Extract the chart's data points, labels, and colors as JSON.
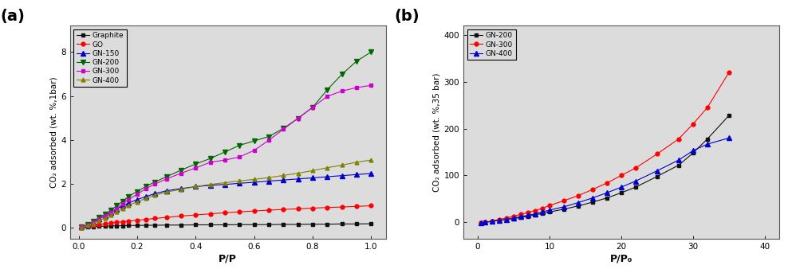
{
  "panel_a": {
    "title": "(a)",
    "xlabel": "P/P",
    "ylabel": "CO₂ adsorbed (wt. %,1bar)",
    "xlim": [
      -0.03,
      1.05
    ],
    "ylim": [
      -0.5,
      9.2
    ],
    "yticks": [
      0,
      2,
      4,
      6,
      8
    ],
    "xticks": [
      0.0,
      0.2,
      0.4,
      0.6,
      0.8,
      1.0
    ],
    "series": {
      "Graphite": {
        "color": "#111111",
        "marker": "s",
        "markersize": 3.5,
        "linewidth": 0.8,
        "x": [
          0.01,
          0.03,
          0.05,
          0.07,
          0.09,
          0.11,
          0.13,
          0.15,
          0.17,
          0.2,
          0.23,
          0.26,
          0.3,
          0.35,
          0.4,
          0.45,
          0.5,
          0.55,
          0.6,
          0.65,
          0.7,
          0.75,
          0.8,
          0.85,
          0.9,
          0.95,
          1.0
        ],
        "y": [
          0.01,
          0.03,
          0.05,
          0.06,
          0.07,
          0.08,
          0.09,
          0.09,
          0.1,
          0.1,
          0.11,
          0.11,
          0.12,
          0.12,
          0.13,
          0.13,
          0.13,
          0.14,
          0.14,
          0.14,
          0.15,
          0.15,
          0.16,
          0.16,
          0.17,
          0.17,
          0.18
        ]
      },
      "GO": {
        "color": "#ff0000",
        "marker": "o",
        "markersize": 3.5,
        "linewidth": 0.8,
        "x": [
          0.01,
          0.03,
          0.05,
          0.07,
          0.09,
          0.11,
          0.13,
          0.15,
          0.17,
          0.2,
          0.23,
          0.26,
          0.3,
          0.35,
          0.4,
          0.45,
          0.5,
          0.55,
          0.6,
          0.65,
          0.7,
          0.75,
          0.8,
          0.85,
          0.9,
          0.95,
          1.0
        ],
        "y": [
          0.02,
          0.06,
          0.1,
          0.14,
          0.18,
          0.21,
          0.24,
          0.27,
          0.3,
          0.34,
          0.38,
          0.42,
          0.47,
          0.53,
          0.58,
          0.63,
          0.68,
          0.72,
          0.76,
          0.8,
          0.83,
          0.86,
          0.89,
          0.92,
          0.94,
          0.97,
          1.0
        ]
      },
      "GN-150": {
        "color": "#0000cc",
        "marker": "^",
        "markersize": 4,
        "linewidth": 0.8,
        "x": [
          0.01,
          0.03,
          0.05,
          0.07,
          0.09,
          0.11,
          0.13,
          0.15,
          0.17,
          0.2,
          0.23,
          0.26,
          0.3,
          0.35,
          0.4,
          0.45,
          0.5,
          0.55,
          0.6,
          0.65,
          0.7,
          0.75,
          0.8,
          0.85,
          0.9,
          0.95,
          1.0
        ],
        "y": [
          0.04,
          0.12,
          0.25,
          0.4,
          0.55,
          0.7,
          0.85,
          1.0,
          1.12,
          1.28,
          1.42,
          1.55,
          1.68,
          1.78,
          1.87,
          1.93,
          1.97,
          2.02,
          2.07,
          2.12,
          2.17,
          2.22,
          2.27,
          2.32,
          2.37,
          2.42,
          2.47
        ]
      },
      "GN-200": {
        "color": "#006600",
        "marker": "v",
        "markersize": 4,
        "linewidth": 0.8,
        "x": [
          0.01,
          0.03,
          0.05,
          0.07,
          0.09,
          0.11,
          0.13,
          0.15,
          0.17,
          0.2,
          0.23,
          0.26,
          0.3,
          0.35,
          0.4,
          0.45,
          0.5,
          0.55,
          0.6,
          0.65,
          0.7,
          0.75,
          0.8,
          0.85,
          0.9,
          0.95,
          1.0
        ],
        "y": [
          0.04,
          0.15,
          0.3,
          0.47,
          0.62,
          0.8,
          1.0,
          1.2,
          1.42,
          1.65,
          1.88,
          2.08,
          2.32,
          2.62,
          2.9,
          3.15,
          3.45,
          3.75,
          3.95,
          4.15,
          4.52,
          4.98,
          5.48,
          6.28,
          6.98,
          7.58,
          8.0
        ]
      },
      "GN-300": {
        "color": "#cc00cc",
        "marker": "s",
        "markersize": 3.5,
        "linewidth": 0.8,
        "x": [
          0.01,
          0.03,
          0.05,
          0.07,
          0.09,
          0.11,
          0.13,
          0.15,
          0.17,
          0.2,
          0.23,
          0.26,
          0.3,
          0.35,
          0.4,
          0.45,
          0.5,
          0.55,
          0.6,
          0.65,
          0.7,
          0.75,
          0.8,
          0.85,
          0.9,
          0.95,
          1.0
        ],
        "y": [
          0.03,
          0.12,
          0.25,
          0.4,
          0.55,
          0.7,
          0.88,
          1.08,
          1.28,
          1.52,
          1.78,
          1.98,
          2.22,
          2.48,
          2.72,
          2.98,
          3.08,
          3.22,
          3.52,
          3.98,
          4.48,
          4.98,
          5.48,
          5.98,
          6.22,
          6.38,
          6.48
        ]
      },
      "GN-400": {
        "color": "#808000",
        "marker": "^",
        "markersize": 3.5,
        "linewidth": 0.8,
        "x": [
          0.01,
          0.03,
          0.05,
          0.07,
          0.09,
          0.11,
          0.13,
          0.15,
          0.17,
          0.2,
          0.23,
          0.26,
          0.3,
          0.35,
          0.4,
          0.45,
          0.5,
          0.55,
          0.6,
          0.65,
          0.7,
          0.75,
          0.8,
          0.85,
          0.9,
          0.95,
          1.0
        ],
        "y": [
          0.02,
          0.1,
          0.2,
          0.32,
          0.45,
          0.57,
          0.72,
          0.88,
          1.02,
          1.18,
          1.33,
          1.48,
          1.62,
          1.75,
          1.87,
          1.97,
          2.05,
          2.13,
          2.2,
          2.28,
          2.38,
          2.48,
          2.6,
          2.73,
          2.85,
          2.98,
          3.08
        ]
      }
    }
  },
  "panel_b": {
    "title": "(b)",
    "xlabel": "P/P₀",
    "ylabel": "CO₂ adsorbed (wt. %,35 bar)",
    "xlim": [
      -2,
      42
    ],
    "ylim": [
      -35,
      420
    ],
    "yticks": [
      0,
      100,
      200,
      300,
      400
    ],
    "xticks": [
      0,
      10,
      20,
      30,
      40
    ],
    "series": {
      "GN-200": {
        "color": "#111111",
        "marker": "s",
        "markersize": 3.5,
        "linewidth": 0.8,
        "x": [
          0.5,
          1,
          2,
          3,
          4,
          5,
          6,
          7,
          8,
          9,
          10,
          12,
          14,
          16,
          18,
          20,
          22,
          25,
          28,
          30,
          32,
          35
        ],
        "y": [
          -2,
          0,
          2,
          4,
          6,
          8,
          10,
          13,
          16,
          19,
          22,
          28,
          35,
          43,
          52,
          63,
          75,
          98,
          122,
          148,
          178,
          228
        ]
      },
      "GN-300": {
        "color": "#ff0000",
        "marker": "o",
        "markersize": 3.5,
        "linewidth": 0.8,
        "x": [
          0.5,
          1,
          2,
          3,
          4,
          5,
          6,
          7,
          8,
          9,
          10,
          12,
          14,
          16,
          18,
          20,
          22,
          25,
          28,
          30,
          32,
          35
        ],
        "y": [
          -2,
          0,
          3,
          6,
          9,
          13,
          17,
          21,
          25,
          30,
          36,
          46,
          57,
          70,
          84,
          100,
          116,
          146,
          178,
          210,
          245,
          320
        ]
      },
      "GN-400": {
        "color": "#0000cc",
        "marker": "^",
        "markersize": 4,
        "linewidth": 0.8,
        "x": [
          0.5,
          1,
          2,
          3,
          4,
          5,
          6,
          7,
          8,
          9,
          10,
          12,
          14,
          16,
          18,
          20,
          22,
          25,
          28,
          30,
          32,
          35
        ],
        "y": [
          -2,
          0,
          2,
          4,
          6,
          9,
          12,
          15,
          18,
          22,
          26,
          33,
          42,
          52,
          63,
          75,
          88,
          110,
          133,
          153,
          167,
          180
        ]
      }
    }
  },
  "fig_width": 9.88,
  "fig_height": 3.43,
  "fig_dpi": 100,
  "bg_color": "#e8e8e8"
}
